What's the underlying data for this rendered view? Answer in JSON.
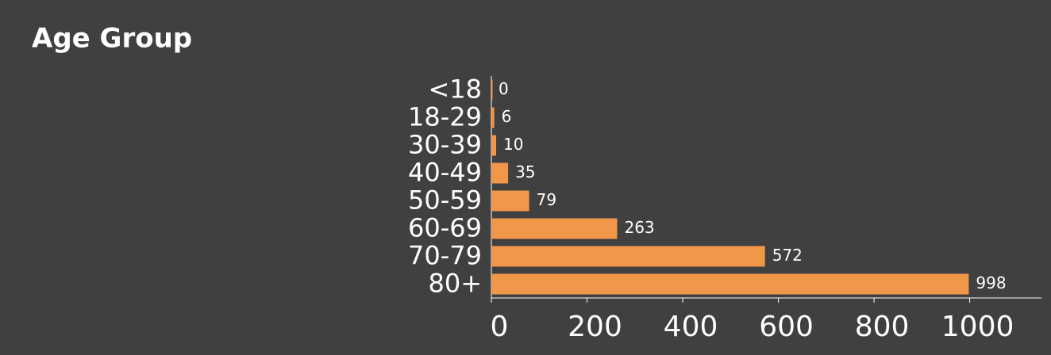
{
  "chart_data": {
    "type": "bar",
    "orientation": "horizontal",
    "title": "Age Group",
    "categories": [
      "<18",
      "18-29",
      "30-39",
      "40-49",
      "50-59",
      "60-69",
      "70-79",
      "80+"
    ],
    "values": [
      0,
      6,
      10,
      35,
      79,
      263,
      572,
      998
    ],
    "color": "#f0974a",
    "xlim": [
      0,
      1150
    ],
    "xticks": [
      0,
      200,
      400,
      600,
      800,
      1000
    ]
  }
}
